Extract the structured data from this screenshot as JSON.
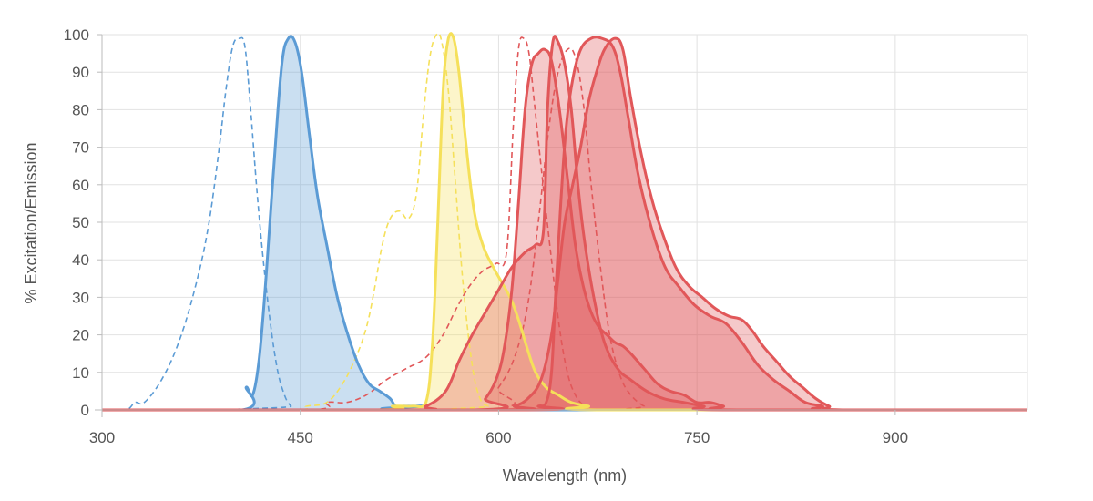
{
  "chart_data": {
    "type": "area",
    "xlabel": "Wavelength (nm)",
    "ylabel": "% Excitation/Emission",
    "xlim": [
      300,
      1000
    ],
    "ylim": [
      0,
      100
    ],
    "xticks": [
      300,
      450,
      600,
      750,
      900
    ],
    "yticks": [
      0,
      10,
      20,
      30,
      40,
      50,
      60,
      70,
      80,
      90,
      100
    ],
    "grid": true,
    "legend": "none",
    "series": [
      {
        "kind": "excitation",
        "color": "#5b9bd5",
        "points": [
          [
            300,
            0
          ],
          [
            318,
            0
          ],
          [
            325,
            2
          ],
          [
            332,
            2
          ],
          [
            345,
            8
          ],
          [
            358,
            18
          ],
          [
            370,
            32
          ],
          [
            380,
            48
          ],
          [
            388,
            68
          ],
          [
            394,
            86
          ],
          [
            399,
            97
          ],
          [
            404,
            99
          ],
          [
            408,
            97
          ],
          [
            412,
            82
          ],
          [
            418,
            55
          ],
          [
            425,
            30
          ],
          [
            432,
            12
          ],
          [
            438,
            4
          ],
          [
            443,
            1
          ],
          [
            448,
            0
          ],
          [
            1000,
            0
          ]
        ]
      },
      {
        "kind": "emission",
        "color": "#5b9bd5",
        "points": [
          [
            300,
            0
          ],
          [
            406,
            0
          ],
          [
            409,
            6
          ],
          [
            414,
            4
          ],
          [
            419,
            14
          ],
          [
            424,
            35
          ],
          [
            430,
            65
          ],
          [
            436,
            92
          ],
          [
            441,
            99
          ],
          [
            446,
            98
          ],
          [
            451,
            90
          ],
          [
            457,
            73
          ],
          [
            463,
            57
          ],
          [
            470,
            44
          ],
          [
            478,
            30
          ],
          [
            486,
            20
          ],
          [
            494,
            12
          ],
          [
            502,
            7
          ],
          [
            510,
            5
          ],
          [
            518,
            3
          ],
          [
            522,
            1
          ],
          [
            528,
            1
          ],
          [
            535,
            1
          ],
          [
            545,
            1
          ],
          [
            548,
            0
          ],
          [
            1000,
            0
          ]
        ]
      },
      {
        "kind": "excitation",
        "color": "#f5e05a",
        "points": [
          [
            300,
            0
          ],
          [
            440,
            0
          ],
          [
            455,
            1
          ],
          [
            470,
            2
          ],
          [
            482,
            7
          ],
          [
            492,
            14
          ],
          [
            500,
            22
          ],
          [
            506,
            32
          ],
          [
            512,
            44
          ],
          [
            518,
            51
          ],
          [
            525,
            53
          ],
          [
            532,
            51
          ],
          [
            538,
            58
          ],
          [
            543,
            78
          ],
          [
            548,
            94
          ],
          [
            553,
            100
          ],
          [
            557,
            98
          ],
          [
            562,
            85
          ],
          [
            567,
            62
          ],
          [
            573,
            34
          ],
          [
            580,
            12
          ],
          [
            586,
            3
          ],
          [
            592,
            1
          ],
          [
            598,
            0
          ],
          [
            1000,
            0
          ]
        ]
      },
      {
        "kind": "emission",
        "color": "#f5e05a",
        "points": [
          [
            300,
            0
          ],
          [
            508,
            0
          ],
          [
            520,
            1
          ],
          [
            535,
            1
          ],
          [
            545,
            2
          ],
          [
            550,
            18
          ],
          [
            554,
            50
          ],
          [
            558,
            85
          ],
          [
            562,
            99
          ],
          [
            566,
            99
          ],
          [
            570,
            90
          ],
          [
            575,
            72
          ],
          [
            581,
            54
          ],
          [
            588,
            44
          ],
          [
            596,
            38
          ],
          [
            604,
            33
          ],
          [
            610,
            29
          ],
          [
            616,
            23
          ],
          [
            622,
            16
          ],
          [
            628,
            10
          ],
          [
            636,
            6
          ],
          [
            645,
            4
          ],
          [
            655,
            2
          ],
          [
            668,
            1
          ],
          [
            680,
            0
          ],
          [
            1000,
            0
          ]
        ]
      },
      {
        "kind": "excitation",
        "color": "#e15759",
        "points": [
          [
            300,
            0
          ],
          [
            455,
            0
          ],
          [
            470,
            2
          ],
          [
            485,
            2
          ],
          [
            500,
            4
          ],
          [
            515,
            8
          ],
          [
            530,
            11
          ],
          [
            545,
            14
          ],
          [
            558,
            20
          ],
          [
            568,
            27
          ],
          [
            578,
            33
          ],
          [
            588,
            37
          ],
          [
            598,
            39
          ],
          [
            606,
            42
          ],
          [
            611,
            75
          ],
          [
            615,
            96
          ],
          [
            619,
            99
          ],
          [
            623,
            95
          ],
          [
            627,
            82
          ],
          [
            633,
            62
          ],
          [
            640,
            40
          ],
          [
            646,
            22
          ],
          [
            652,
            10
          ],
          [
            658,
            4
          ],
          [
            665,
            1
          ],
          [
            672,
            0
          ],
          [
            1000,
            0
          ]
        ]
      },
      {
        "kind": "emission",
        "color": "#e15759",
        "points": [
          [
            300,
            0
          ],
          [
            530,
            0
          ],
          [
            545,
            1
          ],
          [
            560,
            5
          ],
          [
            570,
            13
          ],
          [
            580,
            20
          ],
          [
            590,
            26
          ],
          [
            600,
            32
          ],
          [
            610,
            38
          ],
          [
            620,
            42
          ],
          [
            628,
            44
          ],
          [
            634,
            48
          ],
          [
            637,
            80
          ],
          [
            641,
            98
          ],
          [
            645,
            98
          ],
          [
            650,
            92
          ],
          [
            655,
            80
          ],
          [
            660,
            60
          ],
          [
            665,
            45
          ],
          [
            672,
            30
          ],
          [
            680,
            18
          ],
          [
            690,
            11
          ],
          [
            700,
            8
          ],
          [
            712,
            5
          ],
          [
            725,
            3
          ],
          [
            740,
            2
          ],
          [
            755,
            1
          ],
          [
            770,
            0
          ],
          [
            1000,
            0
          ]
        ]
      },
      {
        "kind": "excitation",
        "color": "#e15759",
        "points": [
          [
            300,
            0
          ],
          [
            585,
            0
          ],
          [
            600,
            6
          ],
          [
            612,
            14
          ],
          [
            622,
            28
          ],
          [
            630,
            50
          ],
          [
            638,
            75
          ],
          [
            645,
            90
          ],
          [
            652,
            96
          ],
          [
            658,
            94
          ],
          [
            664,
            82
          ],
          [
            670,
            60
          ],
          [
            677,
            38
          ],
          [
            684,
            20
          ],
          [
            692,
            9
          ],
          [
            700,
            4
          ],
          [
            710,
            1
          ],
          [
            720,
            0
          ],
          [
            1000,
            0
          ]
        ]
      },
      {
        "kind": "emission",
        "color": "#e15759",
        "points": [
          [
            300,
            0
          ],
          [
            582,
            0
          ],
          [
            590,
            3
          ],
          [
            598,
            8
          ],
          [
            604,
            16
          ],
          [
            610,
            32
          ],
          [
            615,
            55
          ],
          [
            620,
            80
          ],
          [
            625,
            92
          ],
          [
            630,
            95
          ],
          [
            635,
            96
          ],
          [
            640,
            93
          ],
          [
            646,
            80
          ],
          [
            652,
            62
          ],
          [
            658,
            44
          ],
          [
            664,
            33
          ],
          [
            670,
            26
          ],
          [
            676,
            22
          ],
          [
            682,
            20
          ],
          [
            688,
            18
          ],
          [
            694,
            17
          ],
          [
            700,
            15
          ],
          [
            710,
            11
          ],
          [
            720,
            7
          ],
          [
            730,
            5
          ],
          [
            740,
            4
          ],
          [
            750,
            2
          ],
          [
            760,
            2
          ],
          [
            770,
            1
          ],
          [
            780,
            0
          ],
          [
            1000,
            0
          ]
        ]
      },
      {
        "kind": "emission",
        "color": "#e15759",
        "points": [
          [
            300,
            0
          ],
          [
            600,
            0
          ],
          [
            612,
            1
          ],
          [
            622,
            3
          ],
          [
            632,
            8
          ],
          [
            640,
            20
          ],
          [
            645,
            35
          ],
          [
            650,
            50
          ],
          [
            656,
            60
          ],
          [
            662,
            70
          ],
          [
            668,
            82
          ],
          [
            674,
            90
          ],
          [
            680,
            96
          ],
          [
            688,
            99
          ],
          [
            694,
            96
          ],
          [
            700,
            83
          ],
          [
            708,
            68
          ],
          [
            716,
            56
          ],
          [
            724,
            47
          ],
          [
            734,
            38
          ],
          [
            744,
            33
          ],
          [
            754,
            30
          ],
          [
            764,
            27
          ],
          [
            774,
            25
          ],
          [
            784,
            24
          ],
          [
            792,
            21
          ],
          [
            800,
            17
          ],
          [
            810,
            13
          ],
          [
            820,
            9
          ],
          [
            830,
            6
          ],
          [
            840,
            3
          ],
          [
            850,
            1
          ],
          [
            860,
            0
          ],
          [
            1000,
            0
          ]
        ]
      },
      {
        "kind": "emission",
        "color": "#e15759",
        "points": [
          [
            300,
            0
          ],
          [
            620,
            0
          ],
          [
            630,
            1
          ],
          [
            636,
            2
          ],
          [
            640,
            10
          ],
          [
            643,
            30
          ],
          [
            647,
            55
          ],
          [
            651,
            75
          ],
          [
            656,
            88
          ],
          [
            662,
            96
          ],
          [
            670,
            99
          ],
          [
            678,
            99
          ],
          [
            686,
            97
          ],
          [
            692,
            90
          ],
          [
            698,
            78
          ],
          [
            706,
            62
          ],
          [
            716,
            48
          ],
          [
            726,
            38
          ],
          [
            736,
            33
          ],
          [
            748,
            28
          ],
          [
            760,
            25
          ],
          [
            772,
            23
          ],
          [
            784,
            18
          ],
          [
            796,
            12
          ],
          [
            808,
            8
          ],
          [
            820,
            5
          ],
          [
            832,
            2
          ],
          [
            845,
            1
          ],
          [
            850,
            0
          ],
          [
            1000,
            0
          ]
        ]
      }
    ]
  }
}
